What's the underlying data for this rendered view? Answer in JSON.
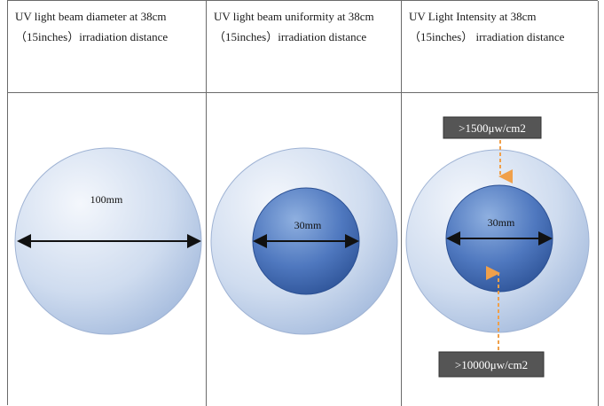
{
  "columns": [
    {
      "header": "UV light beam diameter at 38cm（15inches）irradiation distance",
      "measure": "100mm"
    },
    {
      "header": "UV light beam uniformity at 38cm（15inches）irradiation distance",
      "measure": "30mm"
    },
    {
      "header": "UV Light Intensity at 38cm （15inches） irradiation distance",
      "measure": "30mm",
      "top_value": ">1500μw/cm2",
      "bottom_value": ">10000μw/cm2"
    }
  ],
  "colors": {
    "outer_light": "#eef2fa",
    "outer_dark": "#a9bfe0",
    "inner_light": "#6f93cf",
    "inner_dark": "#2f5aa3",
    "callout_bg": "#555555",
    "arrow_orange": "#f0a04a"
  }
}
